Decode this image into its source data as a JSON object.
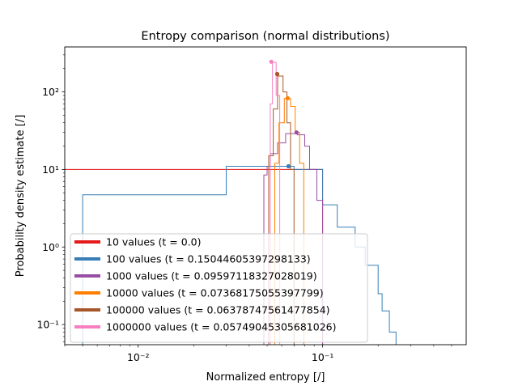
{
  "chart_data": {
    "type": "histogram",
    "title": "Entropy comparison (normal distributions)",
    "xlabel": "Normalized entropy [/]",
    "ylabel": "Probability density estimate [/]",
    "xscale": "log",
    "yscale": "log",
    "xlim": [
      0.004,
      0.6
    ],
    "ylim": [
      0.055,
      380
    ],
    "x_major_ticks": [
      {
        "value": 0.01,
        "label": "10⁻²"
      },
      {
        "value": 0.1,
        "label": "10⁻¹"
      }
    ],
    "y_major_ticks": [
      {
        "value": 0.1,
        "label": "10⁻¹"
      },
      {
        "value": 1,
        "label": "10⁰"
      },
      {
        "value": 10,
        "label": "10¹"
      },
      {
        "value": 100,
        "label": "10²"
      }
    ],
    "grid": false,
    "legend_position": "lower-left",
    "series": [
      {
        "name": "10 values (t = 0.0)",
        "color": "#e41a1c",
        "steps": [
          [
            0.004,
            10
          ],
          [
            0.1,
            10
          ],
          [
            0.1,
            0.04
          ]
        ],
        "marker": null
      },
      {
        "name": "100 values (t = 0.15044605397298133)",
        "color": "#377eb8",
        "steps": [
          [
            0.004,
            0.04
          ],
          [
            0.005,
            0.04
          ],
          [
            0.005,
            4.7
          ],
          [
            0.03,
            4.7
          ],
          [
            0.03,
            11
          ],
          [
            0.07,
            11
          ],
          [
            0.07,
            10
          ],
          [
            0.1,
            10
          ],
          [
            0.1,
            3.5
          ],
          [
            0.12,
            3.5
          ],
          [
            0.12,
            1.8
          ],
          [
            0.15,
            1.8
          ],
          [
            0.15,
            1.0
          ],
          [
            0.17,
            1.0
          ],
          [
            0.17,
            0.58
          ],
          [
            0.2,
            0.58
          ],
          [
            0.2,
            0.25
          ],
          [
            0.21,
            0.25
          ],
          [
            0.21,
            0.15
          ],
          [
            0.23,
            0.15
          ],
          [
            0.23,
            0.08
          ],
          [
            0.25,
            0.08
          ],
          [
            0.25,
            0.04
          ]
        ],
        "marker": {
          "x": 0.0653,
          "y": 11
        }
      },
      {
        "name": "1000 values (t = 0.09597118327028019)",
        "color": "#984ea3",
        "steps": [
          [
            0.048,
            0.04
          ],
          [
            0.048,
            8.5
          ],
          [
            0.05,
            8.5
          ],
          [
            0.05,
            11
          ],
          [
            0.052,
            11
          ],
          [
            0.052,
            16
          ],
          [
            0.057,
            16
          ],
          [
            0.057,
            22
          ],
          [
            0.063,
            22
          ],
          [
            0.063,
            29
          ],
          [
            0.073,
            29
          ],
          [
            0.073,
            28
          ],
          [
            0.08,
            28
          ],
          [
            0.08,
            20
          ],
          [
            0.085,
            20
          ],
          [
            0.085,
            10
          ],
          [
            0.093,
            10
          ],
          [
            0.093,
            4
          ],
          [
            0.1,
            4
          ],
          [
            0.1,
            0.04
          ]
        ],
        "marker": {
          "x": 0.0722,
          "y": 30
        }
      },
      {
        "name": "10000 values (t = 0.07368175055397799)",
        "color": "#ff7f00",
        "steps": [
          [
            0.055,
            0.04
          ],
          [
            0.055,
            12
          ],
          [
            0.058,
            12
          ],
          [
            0.058,
            40
          ],
          [
            0.062,
            40
          ],
          [
            0.062,
            82
          ],
          [
            0.067,
            82
          ],
          [
            0.067,
            65
          ],
          [
            0.071,
            65
          ],
          [
            0.071,
            30
          ],
          [
            0.075,
            30
          ],
          [
            0.075,
            12
          ],
          [
            0.079,
            12
          ],
          [
            0.079,
            0.04
          ]
        ],
        "marker": {
          "x": 0.0646,
          "y": 83
        }
      },
      {
        "name": "100000 values (t = 0.06378747561477854)",
        "color": "#a65628",
        "steps": [
          [
            0.051,
            0.04
          ],
          [
            0.051,
            15
          ],
          [
            0.054,
            15
          ],
          [
            0.054,
            60
          ],
          [
            0.057,
            60
          ],
          [
            0.057,
            160
          ],
          [
            0.061,
            160
          ],
          [
            0.061,
            100
          ],
          [
            0.064,
            100
          ],
          [
            0.064,
            40
          ],
          [
            0.067,
            40
          ],
          [
            0.067,
            10
          ],
          [
            0.07,
            10
          ],
          [
            0.07,
            0.04
          ]
        ],
        "marker": {
          "x": 0.0567,
          "y": 170
        }
      },
      {
        "name": "1000000 values (t = 0.05749045305681026)",
        "color": "#f781bf",
        "steps": [
          [
            0.052,
            0.04
          ],
          [
            0.052,
            70
          ],
          [
            0.0535,
            70
          ],
          [
            0.0535,
            240
          ],
          [
            0.056,
            240
          ],
          [
            0.056,
            90
          ],
          [
            0.0585,
            90
          ],
          [
            0.0585,
            0.04
          ]
        ],
        "marker": {
          "x": 0.0527,
          "y": 245
        }
      }
    ]
  }
}
